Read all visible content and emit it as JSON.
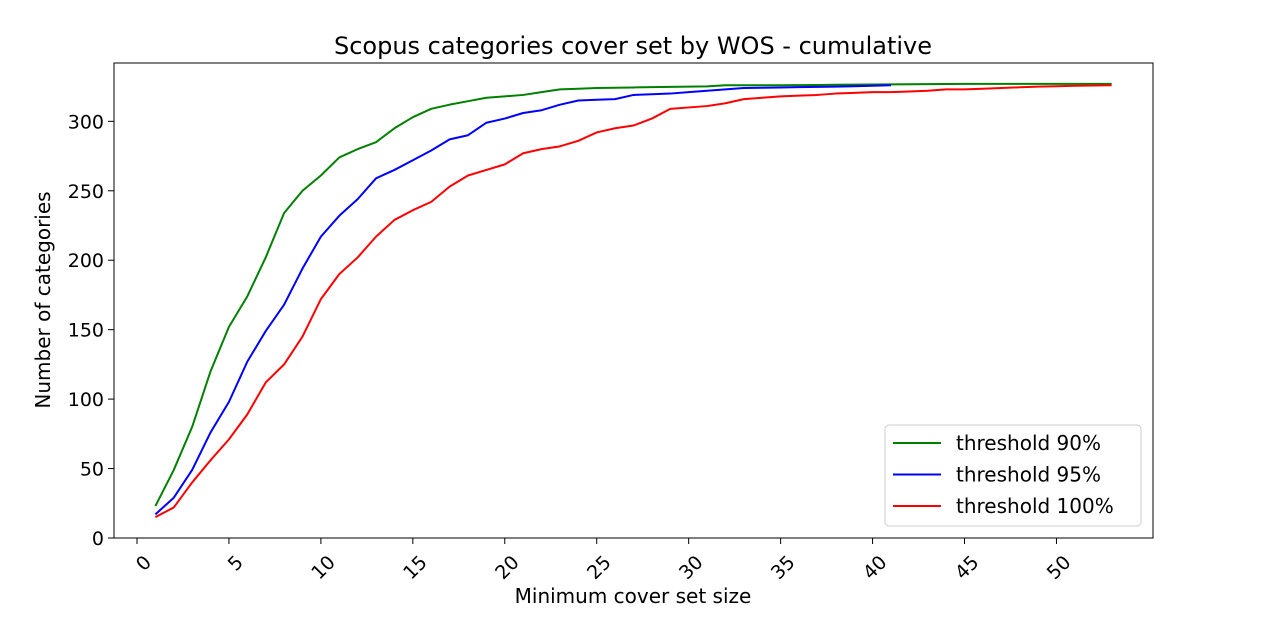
{
  "chart_data": {
    "type": "line",
    "title": "Scopus categories cover set by WOS - cumulative",
    "xlabel": "Minimum cover set size",
    "ylabel": "Number of categories",
    "xlim": [
      -1.25,
      55.25
    ],
    "ylim": [
      0,
      342
    ],
    "xticks": [
      0,
      5,
      10,
      15,
      20,
      25,
      30,
      35,
      40,
      45,
      50
    ],
    "yticks": [
      0,
      50,
      100,
      150,
      200,
      250,
      300
    ],
    "legend_position": "bottom-right",
    "grid": false,
    "series": [
      {
        "name": "threshold 90%",
        "color": "#008000",
        "x": [
          1,
          2,
          3,
          4,
          5,
          6,
          7,
          8,
          9,
          10,
          11,
          12,
          13,
          14,
          15,
          16,
          17,
          18,
          19,
          20,
          21,
          22,
          23,
          24,
          25,
          26,
          27,
          28,
          29,
          30,
          31,
          32,
          33,
          34,
          35,
          36,
          37,
          38,
          39,
          40,
          41,
          42,
          43,
          44,
          45,
          46,
          47,
          48,
          49,
          50,
          51,
          52,
          53
        ],
        "y": [
          23,
          49,
          80,
          120,
          152,
          174,
          202,
          234,
          250,
          261,
          274,
          280,
          285,
          295,
          303,
          309,
          312,
          314.5,
          317,
          318,
          319,
          321,
          323,
          323.5,
          324,
          324.2,
          324.4,
          324.6,
          324.8,
          325,
          325.2,
          326,
          326,
          326,
          326,
          326.1,
          326.2,
          326.3,
          326.4,
          326.5,
          326.6,
          326.7,
          326.8,
          326.9,
          327,
          327,
          327,
          327,
          327,
          327,
          327,
          327,
          327
        ]
      },
      {
        "name": "threshold 95%",
        "color": "#0000ff",
        "x": [
          1,
          2,
          3,
          4,
          5,
          6,
          7,
          8,
          9,
          10,
          11,
          12,
          13,
          14,
          15,
          16,
          17,
          18,
          19,
          20,
          21,
          22,
          23,
          24,
          25,
          26,
          27,
          28,
          29,
          30,
          31,
          32,
          33,
          34,
          35,
          36,
          37,
          38,
          39,
          40,
          41
        ],
        "y": [
          17,
          29,
          49,
          76,
          98,
          127,
          149,
          168,
          194,
          217,
          232,
          244,
          259,
          265,
          272,
          279,
          287,
          290,
          299,
          302,
          306,
          308,
          312,
          315,
          315.5,
          316,
          319,
          319.5,
          320,
          321,
          322,
          323,
          324,
          324.2,
          324.4,
          324.6,
          324.8,
          325,
          325.3,
          325.6,
          326
        ]
      },
      {
        "name": "threshold 100%",
        "color": "#ff0000",
        "x": [
          1,
          2,
          3,
          4,
          5,
          6,
          7,
          8,
          9,
          10,
          11,
          12,
          13,
          14,
          15,
          16,
          17,
          18,
          19,
          20,
          21,
          22,
          23,
          24,
          25,
          26,
          27,
          28,
          29,
          30,
          31,
          32,
          33,
          34,
          35,
          36,
          37,
          38,
          39,
          40,
          41,
          42,
          43,
          44,
          45,
          46,
          47,
          48,
          49,
          50,
          51,
          52,
          53
        ],
        "y": [
          15,
          22,
          40,
          56,
          71,
          89,
          112,
          125,
          145,
          172,
          190,
          202,
          217,
          229,
          236,
          242,
          253,
          261,
          265,
          269,
          277,
          280,
          282,
          286,
          292,
          295,
          297,
          302,
          309,
          310,
          311,
          313,
          316,
          317,
          318,
          318.5,
          319,
          320,
          320.5,
          321,
          321,
          321.5,
          322,
          323,
          323,
          323.5,
          324,
          324.5,
          325,
          325.3,
          325.6,
          325.8,
          326
        ]
      }
    ]
  }
}
